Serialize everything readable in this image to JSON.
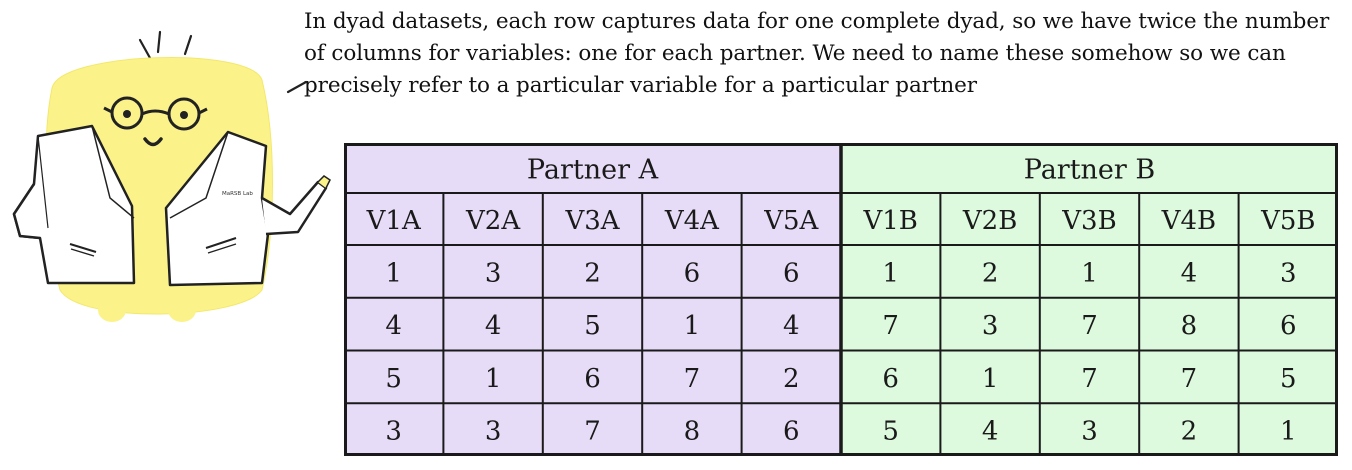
{
  "caption": {
    "line1": "In dyad datasets, each row captures data for one complete dyad,  so we have twice the number",
    "line2": "of columns for variables: one for each partner. We need to name these somehow so we can",
    "line3": "precisely refer to a particular variable for a particular partner"
  },
  "mascot": {
    "badge_text": "MaRSB Lab",
    "body_color": "#fbf38a",
    "coat_color": "#ffffff"
  },
  "table": {
    "partner_a": {
      "label": "Partner A",
      "color": "#e7dcf7",
      "columns": [
        "V1A",
        "V2A",
        "V3A",
        "V4A",
        "V5A"
      ],
      "rows": [
        [
          "1",
          "3",
          "2",
          "6",
          "6"
        ],
        [
          "4",
          "4",
          "5",
          "1",
          "4"
        ],
        [
          "5",
          "1",
          "6",
          "7",
          "2"
        ],
        [
          "3",
          "3",
          "7",
          "8",
          "6"
        ]
      ]
    },
    "partner_b": {
      "label": "Partner B",
      "color": "#ddfadf",
      "columns": [
        "V1B",
        "V2B",
        "V3B",
        "V4B",
        "V5B"
      ],
      "rows": [
        [
          "1",
          "2",
          "1",
          "4",
          "3"
        ],
        [
          "7",
          "3",
          "7",
          "8",
          "6"
        ],
        [
          "6",
          "1",
          "7",
          "7",
          "5"
        ],
        [
          "5",
          "4",
          "3",
          "2",
          "1"
        ]
      ]
    }
  }
}
